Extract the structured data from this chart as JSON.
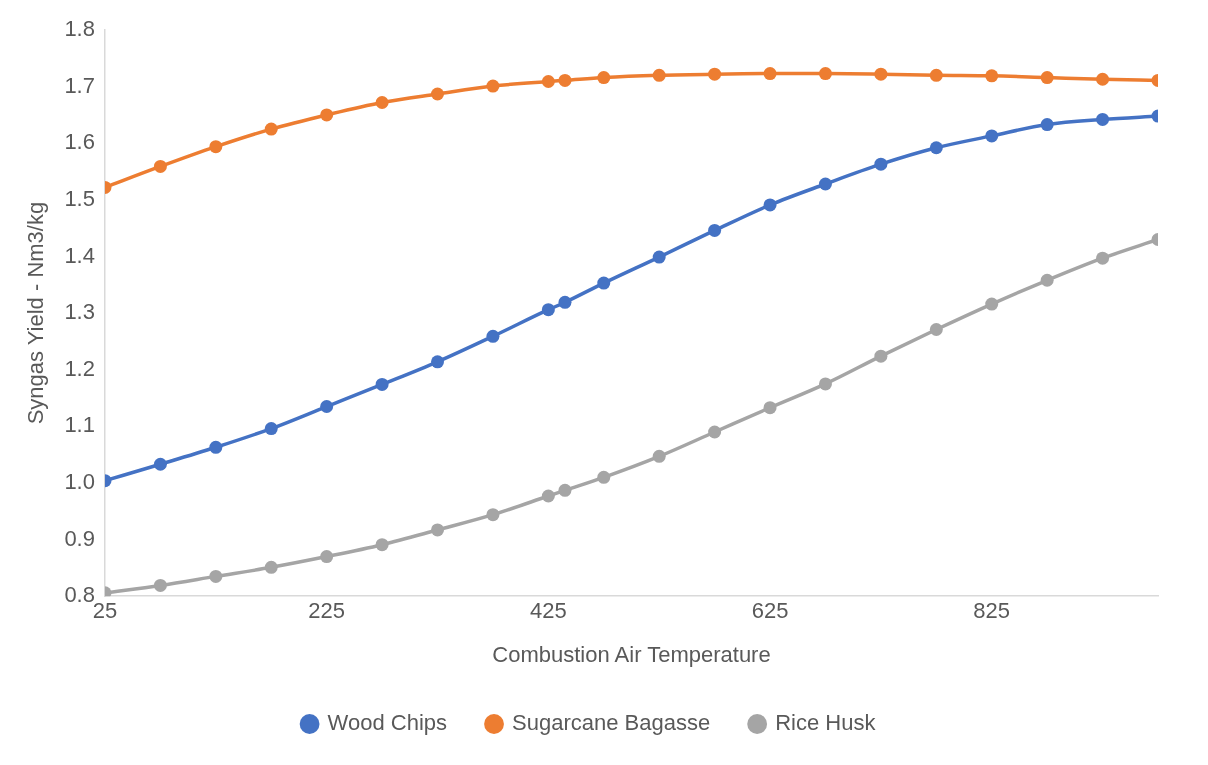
{
  "chart_data": {
    "type": "line",
    "xlabel": "Combustion Air Temperature",
    "ylabel": "Syngas Yield - Nm3/kg",
    "x": [
      25,
      75,
      125,
      175,
      225,
      275,
      325,
      375,
      425,
      440,
      475,
      525,
      575,
      625,
      675,
      725,
      775,
      825,
      875,
      925,
      975
    ],
    "xlim": [
      25,
      975
    ],
    "xticks": [
      25,
      225,
      425,
      625,
      825
    ],
    "ylim": [
      0.8,
      1.8
    ],
    "yticks": [
      0.8,
      0.9,
      {
        "value": 1,
        "label": "1.0"
      },
      1.1,
      1.2,
      1.3,
      1.4,
      1.5,
      1.6,
      1.7,
      1.8
    ],
    "grid": false,
    "legend": "bottom",
    "marker": "circle",
    "line_style": "solid",
    "series": [
      {
        "name": "Wood Chips",
        "color": "#4472c4",
        "values": [
          1.004,
          1.033,
          1.063,
          1.096,
          1.135,
          1.174,
          1.214,
          1.259,
          1.306,
          1.319,
          1.353,
          1.399,
          1.446,
          1.491,
          1.528,
          1.563,
          1.592,
          1.613,
          1.633,
          1.642,
          1.648
        ]
      },
      {
        "name": "Sugarcane Bagasse",
        "color": "#ed7d31",
        "values": [
          1.522,
          1.559,
          1.594,
          1.625,
          1.65,
          1.672,
          1.687,
          1.701,
          1.709,
          1.711,
          1.716,
          1.72,
          1.722,
          1.723,
          1.723,
          1.722,
          1.72,
          1.719,
          1.716,
          1.713,
          1.711
        ]
      },
      {
        "name": "Rice Husk",
        "color": "#a5a5a5",
        "values": [
          0.806,
          0.819,
          0.835,
          0.851,
          0.87,
          0.891,
          0.917,
          0.944,
          0.977,
          0.987,
          1.01,
          1.047,
          1.09,
          1.133,
          1.175,
          1.224,
          1.271,
          1.316,
          1.358,
          1.397,
          1.43
        ]
      }
    ]
  }
}
